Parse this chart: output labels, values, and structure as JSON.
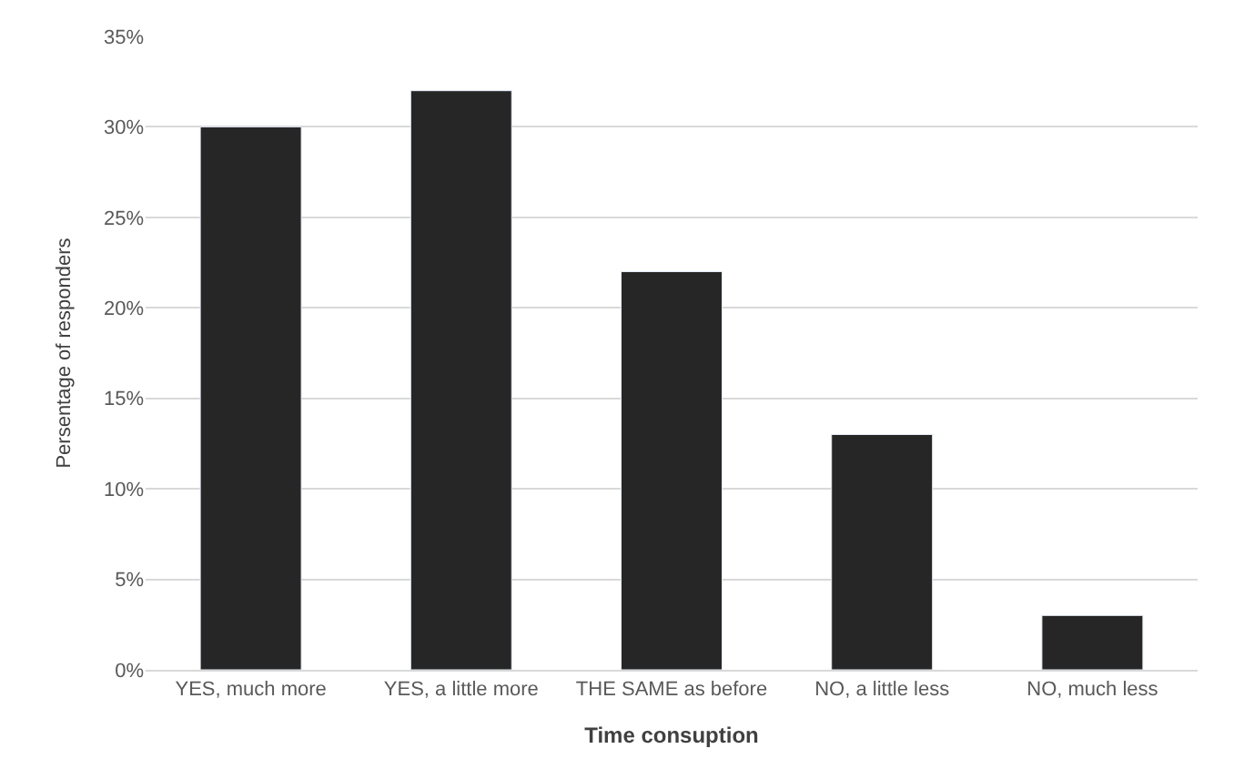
{
  "chart_data": {
    "type": "bar",
    "xlabel": "Time consuption",
    "ylabel": "Persentage of responders",
    "categories": [
      "YES, much more",
      "YES, a little more",
      "THE SAME as before",
      "NO, a little less",
      "NO, much less"
    ],
    "values": [
      30,
      32,
      22,
      13,
      3
    ],
    "color": "#262626",
    "ylim": [
      0,
      35
    ],
    "yticks": [
      {
        "value": 0,
        "label": "0%"
      },
      {
        "value": 5,
        "label": "5%"
      },
      {
        "value": 10,
        "label": "10%"
      },
      {
        "value": 15,
        "label": "15%"
      },
      {
        "value": 20,
        "label": "20%"
      },
      {
        "value": 25,
        "label": "25%"
      },
      {
        "value": 30,
        "label": "30%"
      },
      {
        "value": 35,
        "label": "35%"
      }
    ],
    "grid": "y"
  }
}
